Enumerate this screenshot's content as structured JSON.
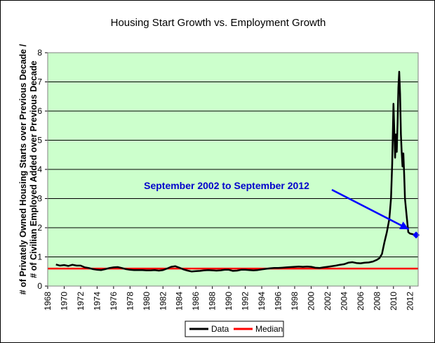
{
  "chart_data": {
    "type": "line",
    "title": "Housing Start Growth vs. Employment Growth",
    "ylabel_line1": "# of Privately Owned Housing Starts over Previous Decade /",
    "ylabel_line2": "# of Civilian Employed Added over Previous Decade",
    "xlabel": "",
    "xlim": [
      1968,
      2013
    ],
    "ylim": [
      0,
      8
    ],
    "x_ticks": [
      "1968",
      "1970",
      "1972",
      "1974",
      "1976",
      "1978",
      "1980",
      "1982",
      "1984",
      "1986",
      "1988",
      "1990",
      "1992",
      "1994",
      "1996",
      "1998",
      "2000",
      "2002",
      "2004",
      "2006",
      "2008",
      "2010",
      "2012"
    ],
    "y_ticks": [
      "0",
      "1",
      "2",
      "3",
      "4",
      "5",
      "6",
      "7",
      "8"
    ],
    "grid": "horizontal",
    "plot_background": "#ccffcc",
    "legend_position": "bottom-center",
    "series": [
      {
        "name": "Data",
        "color": "#000000",
        "points": [
          [
            1969.0,
            0.74
          ],
          [
            1969.5,
            0.7
          ],
          [
            1970.0,
            0.72
          ],
          [
            1970.5,
            0.69
          ],
          [
            1971.0,
            0.73
          ],
          [
            1971.5,
            0.7
          ],
          [
            1972.0,
            0.7
          ],
          [
            1972.5,
            0.64
          ],
          [
            1973.0,
            0.62
          ],
          [
            1973.5,
            0.58
          ],
          [
            1974.0,
            0.56
          ],
          [
            1974.5,
            0.55
          ],
          [
            1975.0,
            0.58
          ],
          [
            1975.5,
            0.62
          ],
          [
            1976.0,
            0.64
          ],
          [
            1976.5,
            0.65
          ],
          [
            1977.0,
            0.62
          ],
          [
            1977.5,
            0.58
          ],
          [
            1978.0,
            0.56
          ],
          [
            1978.5,
            0.55
          ],
          [
            1979.0,
            0.55
          ],
          [
            1979.5,
            0.55
          ],
          [
            1980.0,
            0.54
          ],
          [
            1980.5,
            0.54
          ],
          [
            1981.0,
            0.55
          ],
          [
            1981.5,
            0.53
          ],
          [
            1982.0,
            0.55
          ],
          [
            1982.5,
            0.6
          ],
          [
            1983.0,
            0.66
          ],
          [
            1983.5,
            0.68
          ],
          [
            1984.0,
            0.63
          ],
          [
            1984.5,
            0.57
          ],
          [
            1985.0,
            0.53
          ],
          [
            1985.5,
            0.5
          ],
          [
            1986.0,
            0.51
          ],
          [
            1986.5,
            0.52
          ],
          [
            1987.0,
            0.54
          ],
          [
            1987.5,
            0.55
          ],
          [
            1988.0,
            0.54
          ],
          [
            1988.5,
            0.53
          ],
          [
            1989.0,
            0.54
          ],
          [
            1989.5,
            0.56
          ],
          [
            1990.0,
            0.56
          ],
          [
            1990.5,
            0.52
          ],
          [
            1991.0,
            0.53
          ],
          [
            1991.5,
            0.56
          ],
          [
            1992.0,
            0.56
          ],
          [
            1992.5,
            0.55
          ],
          [
            1993.0,
            0.54
          ],
          [
            1993.5,
            0.55
          ],
          [
            1994.0,
            0.57
          ],
          [
            1994.5,
            0.59
          ],
          [
            1995.0,
            0.61
          ],
          [
            1995.5,
            0.62
          ],
          [
            1996.0,
            0.62
          ],
          [
            1996.5,
            0.63
          ],
          [
            1997.0,
            0.64
          ],
          [
            1997.5,
            0.65
          ],
          [
            1998.0,
            0.66
          ],
          [
            1998.5,
            0.67
          ],
          [
            1999.0,
            0.66
          ],
          [
            1999.5,
            0.67
          ],
          [
            2000.0,
            0.66
          ],
          [
            2000.5,
            0.63
          ],
          [
            2001.0,
            0.62
          ],
          [
            2001.5,
            0.64
          ],
          [
            2002.0,
            0.66
          ],
          [
            2002.5,
            0.68
          ],
          [
            2003.0,
            0.7
          ],
          [
            2003.5,
            0.73
          ],
          [
            2004.0,
            0.75
          ],
          [
            2004.5,
            0.8
          ],
          [
            2005.0,
            0.82
          ],
          [
            2005.5,
            0.79
          ],
          [
            2006.0,
            0.78
          ],
          [
            2006.5,
            0.8
          ],
          [
            2007.0,
            0.81
          ],
          [
            2007.5,
            0.84
          ],
          [
            2008.0,
            0.9
          ],
          [
            2008.3,
            0.96
          ],
          [
            2008.6,
            1.1
          ],
          [
            2008.9,
            1.5
          ],
          [
            2009.2,
            1.85
          ],
          [
            2009.5,
            2.3
          ],
          [
            2009.7,
            3.0
          ],
          [
            2009.85,
            4.2
          ],
          [
            2010.0,
            6.25
          ],
          [
            2010.1,
            5.3
          ],
          [
            2010.2,
            4.4
          ],
          [
            2010.3,
            5.2
          ],
          [
            2010.4,
            4.6
          ],
          [
            2010.5,
            5.6
          ],
          [
            2010.6,
            6.8
          ],
          [
            2010.7,
            7.35
          ],
          [
            2010.8,
            6.6
          ],
          [
            2010.9,
            5.2
          ],
          [
            2011.0,
            4.6
          ],
          [
            2011.1,
            4.1
          ],
          [
            2011.2,
            4.55
          ],
          [
            2011.3,
            3.8
          ],
          [
            2011.4,
            3.0
          ],
          [
            2011.6,
            2.4
          ],
          [
            2011.8,
            1.85
          ],
          [
            2012.0,
            1.8
          ],
          [
            2012.3,
            1.78
          ],
          [
            2012.6,
            1.75
          ],
          [
            2012.75,
            1.75
          ]
        ]
      },
      {
        "name": "Median",
        "color": "#ff0000",
        "points": [
          [
            1968,
            0.6
          ],
          [
            2013,
            0.6
          ]
        ]
      }
    ],
    "highlight_marker": {
      "x": 2012.75,
      "y": 1.75,
      "color": "#0000ff"
    },
    "annotation": {
      "text": "September 2002 to September 2012",
      "color": "#0000cc",
      "arrow_to": {
        "x": 2011.85,
        "y": 1.95
      }
    }
  }
}
